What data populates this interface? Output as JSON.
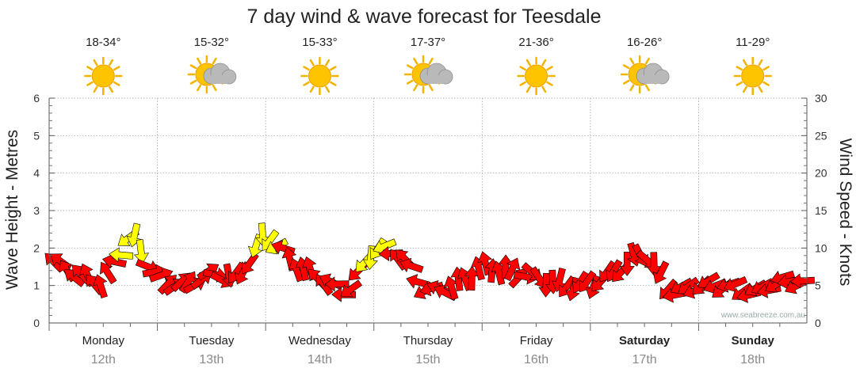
{
  "chart_data": {
    "type": "line",
    "title": "7 day wind & wave forecast for Teesdale",
    "ylabel_left": "Wave Height - Metres",
    "ylabel_right": "Wind Speed - Knots",
    "ylim_left": [
      0,
      6
    ],
    "ylim_right": [
      0,
      30
    ],
    "yticks_left": [
      "0",
      "1",
      "2",
      "3",
      "4",
      "5",
      "6"
    ],
    "yticks_right": [
      "0",
      "5",
      "10",
      "15",
      "20",
      "25",
      "30"
    ],
    "grid": true,
    "credit": "www.seabreeze.com.au",
    "days": [
      {
        "day": "Monday",
        "date": "12th",
        "temp": "18-34°",
        "icon": "sun-icon",
        "bold": false
      },
      {
        "day": "Tuesday",
        "date": "13th",
        "temp": "15-32°",
        "icon": "partly-cloudy-icon",
        "bold": false
      },
      {
        "day": "Wednesday",
        "date": "14th",
        "temp": "15-33°",
        "icon": "sun-icon",
        "bold": false
      },
      {
        "day": "Thursday",
        "date": "15th",
        "temp": "17-37°",
        "icon": "partly-cloudy-icon",
        "bold": false
      },
      {
        "day": "Friday",
        "date": "16th",
        "temp": "21-36°",
        "icon": "sun-icon",
        "bold": false
      },
      {
        "day": "Saturday",
        "date": "17th",
        "temp": "16-26°",
        "icon": "partly-cloudy-icon",
        "bold": true
      },
      {
        "day": "Sunday",
        "date": "18th",
        "temp": "11-29°",
        "icon": "sun-icon",
        "bold": true
      }
    ],
    "colors": {
      "strong_wind": "#ff0000",
      "light_wind": "#ffff00",
      "outline": "#000000",
      "grid": "#999999"
    },
    "wind_series": {
      "name": "Wind",
      "x_days": [
        0.0,
        0.25,
        0.5,
        0.75,
        1.0,
        1.25,
        1.5,
        1.75,
        2.0,
        2.25,
        2.5,
        2.75,
        3.0,
        3.25,
        3.5,
        3.75,
        4.0,
        4.25,
        4.5,
        4.75,
        5.0,
        5.25,
        5.5,
        5.75,
        6.0,
        6.25,
        6.5,
        6.75,
        7.0
      ],
      "speed_knots": [
        8.5,
        6.5,
        5.2,
        12.0,
        6.0,
        5.0,
        6.5,
        6.0,
        12.0,
        8.0,
        6.0,
        4.0,
        10.0,
        9.0,
        4.0,
        5.0,
        7.5,
        7.0,
        6.0,
        5.0,
        5.0,
        7.0,
        9.5,
        4.0,
        5.0,
        5.0,
        4.0,
        5.5,
        5.5
      ],
      "direction_deg": [
        135,
        135,
        110,
        225,
        25,
        50,
        25,
        225,
        270,
        95,
        125,
        200,
        260,
        120,
        210,
        100,
        100,
        90,
        300,
        245,
        240,
        230,
        320,
        200,
        215,
        205,
        205,
        200,
        190
      ],
      "color_band": [
        "red",
        "red",
        "red",
        "yellow",
        "red",
        "red",
        "red",
        "red",
        "yellow",
        "red",
        "red",
        "red",
        "yellow",
        "red",
        "red",
        "red",
        "red",
        "red",
        "red",
        "red",
        "red",
        "red",
        "red",
        "red",
        "red",
        "red",
        "red",
        "red",
        "red"
      ]
    }
  }
}
